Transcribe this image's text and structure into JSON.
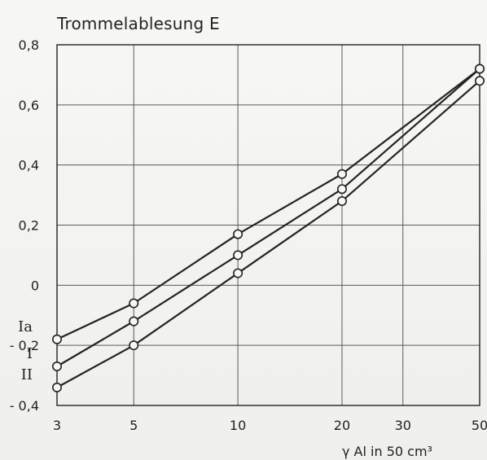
{
  "chart_data": {
    "type": "line",
    "title": "Trommelablesung E",
    "xlabel": "γ Al in 50 cm³",
    "ylabel": "",
    "x_ticks": [
      3,
      5,
      10,
      20,
      30,
      50
    ],
    "y_ticks": [
      0.8,
      0.6,
      0.4,
      0.2,
      0,
      -0.2,
      -0.4
    ],
    "x_tick_labels": [
      "3",
      "5",
      "10",
      "20",
      "30",
      "50"
    ],
    "y_tick_labels": [
      "0,8",
      "0,6",
      "0,4",
      "0,2",
      "0",
      "- 0,2",
      "- 0,4"
    ],
    "x_scale": "log",
    "ylim": [
      -0.4,
      0.8
    ],
    "grid": true,
    "series": [
      {
        "name": "Ia",
        "x": [
          3,
          5,
          10,
          20,
          50
        ],
        "y": [
          -0.18,
          -0.06,
          0.17,
          0.37,
          0.72
        ]
      },
      {
        "name": "I",
        "x": [
          3,
          5,
          10,
          20,
          50
        ],
        "y": [
          -0.27,
          -0.12,
          0.1,
          0.32,
          0.72
        ]
      },
      {
        "name": "II",
        "x": [
          3,
          5,
          10,
          20,
          50
        ],
        "y": [
          -0.34,
          -0.2,
          0.04,
          0.28,
          0.68
        ]
      }
    ]
  }
}
